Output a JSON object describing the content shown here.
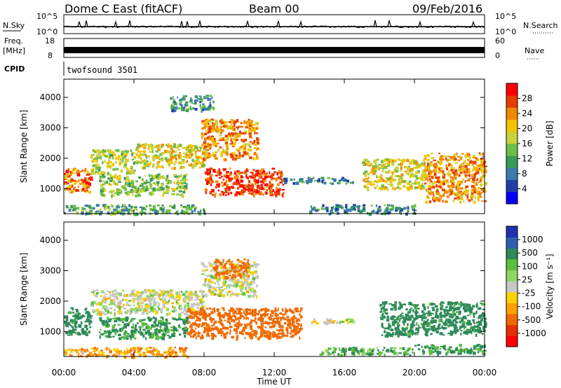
{
  "header": {
    "title": "Dome C East (fitACF)",
    "beam": "Beam 00",
    "date": "09/Feb/2016"
  },
  "panels": {
    "nsky": {
      "label": "N.Sky",
      "tick_top": "10^5",
      "tick_bottom": "10^0"
    },
    "nsearch": {
      "label": "N.Search",
      "tick_top": "10^5",
      "tick_bottom": "10^0"
    },
    "freq": {
      "label_line1": "Freq.",
      "label_line2": "[MHz]",
      "tick_top": "18",
      "tick_bottom": "8"
    },
    "nave": {
      "label": "Nave",
      "tick_top": "60",
      "tick_bottom": "0"
    },
    "cpid": {
      "label": "CPID",
      "value": "twofsound 3501"
    }
  },
  "colors": {
    "power_scale": [
      "#0000ff",
      "#1f3fa8",
      "#3c7ab0",
      "#3a9a5a",
      "#6cbf46",
      "#c8d23a",
      "#f5c400",
      "#f08a00",
      "#e83c00",
      "#ff0000"
    ],
    "velocity_scale": [
      "#2030b0",
      "#2c5fb4",
      "#2e8a5a",
      "#5cbf3c",
      "#8ed860",
      "#c8c8c8",
      "#ffd200",
      "#ffa000",
      "#f06a00",
      "#e83000",
      "#ff0000"
    ]
  },
  "chart_data": [
    {
      "type": "heatmap",
      "name": "power",
      "ylabel": "Slant Range [km]",
      "xlabel": "Time UT",
      "x_ticks": [
        "00:00",
        "04:00",
        "08:00",
        "12:00",
        "16:00",
        "20:00",
        "00:00"
      ],
      "y_ticks": [
        "1000",
        "2000",
        "3000",
        "4000"
      ],
      "ylim": [
        180,
        4600
      ],
      "colorbar": {
        "label": "Power [dB]",
        "ticks": [
          "4",
          "8",
          "12",
          "16",
          "20",
          "24",
          "28"
        ],
        "range": [
          0,
          30
        ]
      },
      "regions": [
        {
          "t0": 0.0,
          "t1": 1.5,
          "r0": 900,
          "r1": 1700,
          "value": 24
        },
        {
          "t0": 1.5,
          "t1": 4.0,
          "r0": 1500,
          "r1": 2300,
          "value": 16
        },
        {
          "t0": 4.0,
          "t1": 8.0,
          "r0": 1700,
          "r1": 2500,
          "value": 18
        },
        {
          "t0": 7.8,
          "t1": 11.0,
          "r0": 2000,
          "r1": 3300,
          "value": 22
        },
        {
          "t0": 6.0,
          "t1": 8.5,
          "r0": 3600,
          "r1": 4100,
          "value": 10
        },
        {
          "t0": 8.0,
          "t1": 12.5,
          "r0": 800,
          "r1": 1700,
          "value": 26
        },
        {
          "t0": 2.0,
          "t1": 7.0,
          "r0": 800,
          "r1": 1500,
          "value": 14
        },
        {
          "t0": 12.5,
          "t1": 16.5,
          "r0": 1200,
          "r1": 1400,
          "value": 8
        },
        {
          "t0": 14.0,
          "t1": 20.0,
          "r0": 200,
          "r1": 500,
          "value": 9
        },
        {
          "t0": 17.0,
          "t1": 20.5,
          "r0": 1000,
          "r1": 2000,
          "value": 18
        },
        {
          "t0": 20.5,
          "t1": 24.0,
          "r0": 600,
          "r1": 2200,
          "value": 22
        },
        {
          "t0": 0.0,
          "t1": 8.0,
          "r0": 200,
          "r1": 500,
          "value": 12
        }
      ]
    },
    {
      "type": "heatmap",
      "name": "velocity",
      "ylabel": "Slant Range [km]",
      "xlabel": "Time UT",
      "x_ticks": [
        "00:00",
        "04:00",
        "08:00",
        "12:00",
        "16:00",
        "20:00",
        "00:00"
      ],
      "y_ticks": [
        "1000",
        "2000",
        "3000",
        "4000"
      ],
      "ylim": [
        180,
        4600
      ],
      "colorbar": {
        "label": "Velocity [m s⁻¹]",
        "ticks": [
          "1000",
          "500",
          "100",
          "25",
          "-25",
          "-100",
          "-500",
          "-1000"
        ]
      },
      "regions": [
        {
          "t0": 0.0,
          "t1": 1.5,
          "r0": 900,
          "r1": 1800,
          "value": 150
        },
        {
          "t0": 1.5,
          "t1": 8.0,
          "r0": 1600,
          "r1": 2400,
          "value": 0
        },
        {
          "t0": 7.8,
          "t1": 11.0,
          "r0": 2200,
          "r1": 3300,
          "value": 0
        },
        {
          "t0": 8.5,
          "t1": 10.5,
          "r0": 2800,
          "r1": 3400,
          "value": -150
        },
        {
          "t0": 7.0,
          "t1": 13.5,
          "r0": 800,
          "r1": 1800,
          "value": -200
        },
        {
          "t0": 2.0,
          "t1": 7.0,
          "r0": 800,
          "r1": 1500,
          "value": 120
        },
        {
          "t0": 14.0,
          "t1": 16.5,
          "r0": 1300,
          "r1": 1450,
          "value": 0
        },
        {
          "t0": 14.5,
          "t1": 20.0,
          "r0": 250,
          "r1": 500,
          "value": 80
        },
        {
          "t0": 18.0,
          "t1": 24.0,
          "r0": 900,
          "r1": 2000,
          "value": 150
        },
        {
          "t0": 20.0,
          "t1": 24.0,
          "r0": 300,
          "r1": 600,
          "value": 120
        },
        {
          "t0": 0.0,
          "t1": 7.0,
          "r0": 200,
          "r1": 500,
          "value": -80
        }
      ]
    }
  ]
}
